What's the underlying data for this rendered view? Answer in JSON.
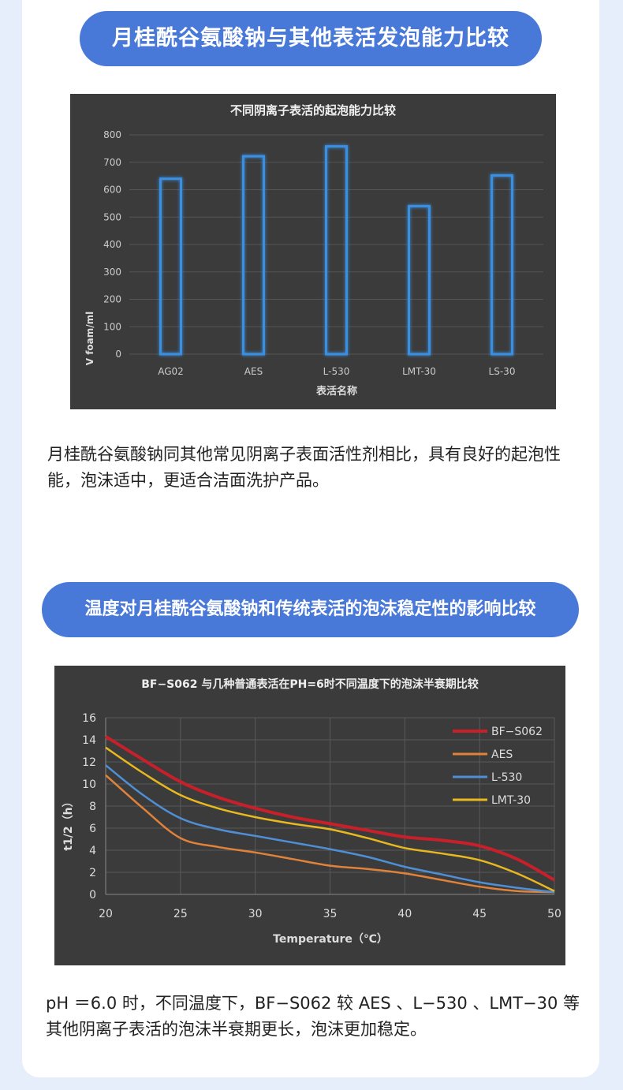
{
  "sections": [
    {
      "heading": "月桂酰谷氨酸钠与其他表活发泡能力比较",
      "paragraph": "月桂酰谷氨酸钠同其他常见阴离子表面活性剂相比，具有良好的起泡性能，泡沫适中，更适合洁面洗护产品。"
    },
    {
      "heading": "温度对月桂酰谷氨酸钠和传统表活的泡沫稳定性的影响比较",
      "paragraph": "pH ＝6.0 时，不同温度下，BF−S062 较 AES 、L−530 、LMT−30 等其他阴离子表活的泡沫半衰期更长，泡沫更加稳定。"
    }
  ],
  "chart_data": [
    {
      "type": "bar",
      "title": "不同阴离子表活的起泡能力比较",
      "xlabel": "表活名称",
      "ylabel": "V foam/ml",
      "categories": [
        "AG02",
        "AES",
        "L-530",
        "LMT-30",
        "LS-30"
      ],
      "values": [
        640,
        722,
        758,
        540,
        652
      ],
      "ylim": [
        0,
        800
      ],
      "yticks": [
        "0",
        "100",
        "200",
        "300",
        "400",
        "500",
        "600",
        "700",
        "800"
      ],
      "grid": true,
      "bar_color": "#3a8fe0"
    },
    {
      "type": "line",
      "title": "BF−S062 与几种普通表活在PH=6时不同温度下的泡沫半衰期比较",
      "xlabel": "Temperature（℃）",
      "ylabel": "t1/2（h）",
      "xlim": [
        20,
        50
      ],
      "ylim": [
        0,
        16
      ],
      "xticks": [
        "20",
        "25",
        "30",
        "35",
        "40",
        "45",
        "50"
      ],
      "yticks": [
        "0",
        "2",
        "4",
        "6",
        "8",
        "10",
        "12",
        "14",
        "16"
      ],
      "grid": true,
      "legend_position": "top-right",
      "series": [
        {
          "name": "BF−S062",
          "color": "#c8202a",
          "x": [
            20,
            22.5,
            25,
            27.5,
            30,
            32.5,
            35,
            37.5,
            40,
            42.5,
            45,
            47.5,
            50
          ],
          "values": [
            14.3,
            12.2,
            10.2,
            8.8,
            7.8,
            7.0,
            6.4,
            5.8,
            5.2,
            4.9,
            4.4,
            3.2,
            1.3
          ]
        },
        {
          "name": "AES",
          "color": "#e0823a",
          "x": [
            20,
            22.5,
            25,
            27.5,
            30,
            32.5,
            35,
            37.5,
            40,
            42.5,
            45,
            47.5,
            50
          ],
          "values": [
            10.8,
            7.8,
            5.1,
            4.3,
            3.8,
            3.2,
            2.6,
            2.3,
            1.9,
            1.3,
            0.7,
            0.3,
            0.2
          ]
        },
        {
          "name": "L-530",
          "color": "#4f8fd6",
          "x": [
            20,
            22.5,
            25,
            27.5,
            30,
            32.5,
            35,
            37.5,
            40,
            42.5,
            45,
            47.5,
            50
          ],
          "values": [
            11.7,
            9.0,
            6.9,
            5.9,
            5.3,
            4.7,
            4.1,
            3.4,
            2.5,
            1.8,
            1.1,
            0.6,
            0.2
          ]
        },
        {
          "name": "LMT-30",
          "color": "#e8b820",
          "x": [
            20,
            22.5,
            25,
            27.5,
            30,
            32.5,
            35,
            37.5,
            40,
            42.5,
            45,
            47.5,
            50
          ],
          "values": [
            13.3,
            11.0,
            9.0,
            7.8,
            7.0,
            6.4,
            5.9,
            5.1,
            4.2,
            3.7,
            3.1,
            1.9,
            0.3
          ]
        }
      ]
    }
  ]
}
